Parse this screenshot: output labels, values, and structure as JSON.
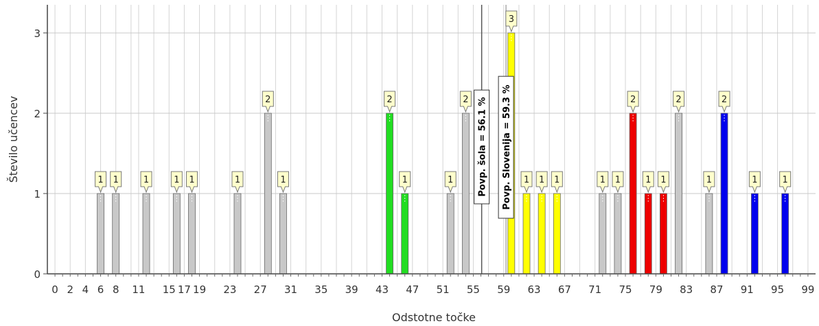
{
  "chart_data": {
    "type": "bar",
    "xlabel": "Odstotne točke",
    "ylabel": "Število učencev",
    "xlim": [
      -1,
      100
    ],
    "ylim": [
      0,
      3.35
    ],
    "x_ticks": [
      0,
      2,
      4,
      6,
      8,
      11,
      15,
      17,
      19,
      23,
      27,
      31,
      35,
      39,
      43,
      47,
      51,
      55,
      59,
      63,
      67,
      71,
      75,
      79,
      83,
      87,
      91,
      95,
      99
    ],
    "y_ticks": [
      0,
      1,
      2,
      3
    ],
    "grid": true,
    "bars": [
      {
        "x": 6,
        "value": 1,
        "color": "#c8c8c8",
        "label": "1"
      },
      {
        "x": 8,
        "value": 1,
        "color": "#c8c8c8",
        "label": "1"
      },
      {
        "x": 12,
        "value": 1,
        "color": "#c8c8c8",
        "label": "1"
      },
      {
        "x": 16,
        "value": 1,
        "color": "#c8c8c8",
        "label": "1"
      },
      {
        "x": 18,
        "value": 1,
        "color": "#c8c8c8",
        "label": "1"
      },
      {
        "x": 24,
        "value": 1,
        "color": "#c8c8c8",
        "label": "1"
      },
      {
        "x": 28,
        "value": 2,
        "color": "#c8c8c8",
        "label": "2"
      },
      {
        "x": 30,
        "value": 1,
        "color": "#c8c8c8",
        "label": "1"
      },
      {
        "x": 44,
        "value": 2,
        "color": "#22dd22",
        "label": "2"
      },
      {
        "x": 46,
        "value": 1,
        "color": "#22dd22",
        "label": "1"
      },
      {
        "x": 52,
        "value": 1,
        "color": "#c8c8c8",
        "label": "1"
      },
      {
        "x": 54,
        "value": 2,
        "color": "#c8c8c8",
        "label": "2"
      },
      {
        "x": 60,
        "value": 3,
        "color": "#ffff00",
        "label": "3"
      },
      {
        "x": 62,
        "value": 1,
        "color": "#ffff00",
        "label": "1"
      },
      {
        "x": 64,
        "value": 1,
        "color": "#ffff00",
        "label": "1"
      },
      {
        "x": 66,
        "value": 1,
        "color": "#ffff00",
        "label": "1"
      },
      {
        "x": 72,
        "value": 1,
        "color": "#c8c8c8",
        "label": "1"
      },
      {
        "x": 74,
        "value": 1,
        "color": "#c8c8c8",
        "label": "1"
      },
      {
        "x": 76,
        "value": 2,
        "color": "#ee0000",
        "label": "2"
      },
      {
        "x": 78,
        "value": 1,
        "color": "#ee0000",
        "label": "1"
      },
      {
        "x": 80,
        "value": 1,
        "color": "#ee0000",
        "label": "1"
      },
      {
        "x": 82,
        "value": 2,
        "color": "#c8c8c8",
        "label": "2"
      },
      {
        "x": 86,
        "value": 1,
        "color": "#c8c8c8",
        "label": "1"
      },
      {
        "x": 88,
        "value": 2,
        "color": "#0000ee",
        "label": "2"
      },
      {
        "x": 92,
        "value": 1,
        "color": "#0000ee",
        "label": "1"
      },
      {
        "x": 96,
        "value": 1,
        "color": "#0000ee",
        "label": "1"
      }
    ],
    "reference_lines": [
      {
        "x": 56.1,
        "label": "Povp. šola = 56.1 %",
        "color": "#555555"
      },
      {
        "x": 59.3,
        "label": "Povp. Slovenija = 59.3 %",
        "color": "#aaaaaa"
      }
    ]
  }
}
